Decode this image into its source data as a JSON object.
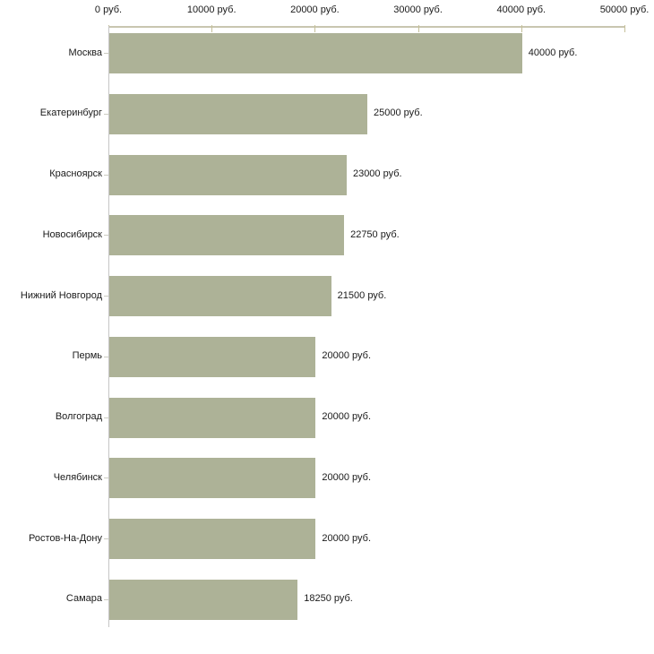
{
  "chart_data": {
    "type": "bar",
    "orientation": "horizontal",
    "title": "",
    "xlabel": "",
    "ylabel": "",
    "xlim": [
      0,
      50000
    ],
    "grid": false,
    "legend": null,
    "x_tick_values": [
      0,
      10000,
      20000,
      30000,
      40000,
      50000
    ],
    "x_tick_labels": [
      "0 руб.",
      "10000 руб.",
      "20000 руб.",
      "30000 руб.",
      "40000 руб.",
      "50000 руб."
    ],
    "categories": [
      "Москва",
      "Екатеринбург",
      "Красноярск",
      "Новосибирск",
      "Нижний Новгород",
      "Пермь",
      "Волгоград",
      "Челябинск",
      "Ростов-На-Дону",
      "Самара"
    ],
    "values": [
      40000,
      25000,
      23000,
      22750,
      21500,
      20000,
      20000,
      20000,
      20000,
      18250
    ],
    "bar_labels": [
      "40000 руб.",
      "25000 руб.",
      "23000 руб.",
      "22750 руб.",
      "21500 руб.",
      "20000 руб.",
      "20000 руб.",
      "20000 руб.",
      "20000 руб.",
      "18250 руб."
    ],
    "unit": "руб."
  },
  "style": {
    "bar_color": "#adb297",
    "top_axis_line_color": "#c9c6b0",
    "top_axis_tick_color": "#c5c09a",
    "left_axis_line_color": "#c6c6c6",
    "category_tick_color": "#cbcbc1",
    "text_color": "#1a1a1a",
    "background": "#ffffff"
  }
}
